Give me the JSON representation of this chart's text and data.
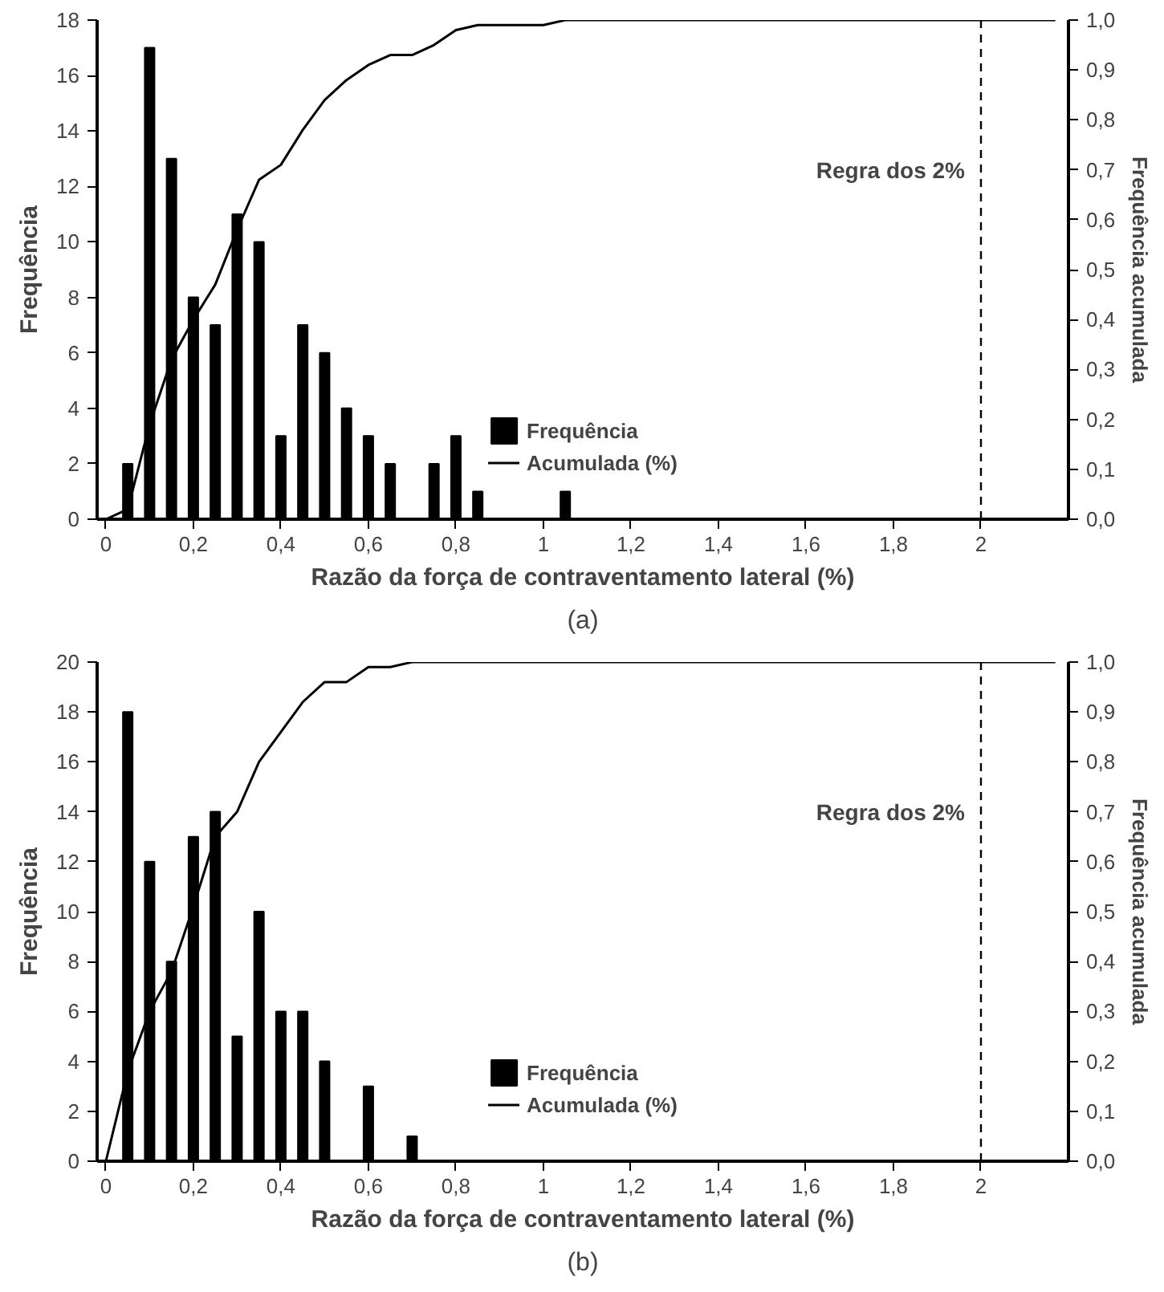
{
  "chart_data": [
    {
      "type": "bar",
      "xlabel": "Razão da força de contraventamento lateral (%)",
      "ylabel": "Frequência",
      "y2label": "Frequência acumulada",
      "annotations": [
        "(a)"
      ],
      "x": [
        0.05,
        0.1,
        0.15,
        0.2,
        0.25,
        0.3,
        0.35,
        0.4,
        0.45,
        0.5,
        0.55,
        0.6,
        0.65,
        0.7,
        0.75,
        0.8,
        0.85,
        0.9,
        0.95,
        1.0,
        1.05
      ],
      "series": [
        {
          "name": "Frequência",
          "color": "#000000",
          "values": [
            2,
            17,
            13,
            8,
            7,
            11,
            10,
            3,
            7,
            6,
            4,
            3,
            2,
            0,
            2,
            3,
            1,
            0,
            0,
            0,
            1
          ]
        },
        {
          "name": "Acumulada (%)",
          "type": "line",
          "axis": "y2",
          "color": "#000000",
          "x": [
            0,
            0.05,
            0.1,
            0.15,
            0.2,
            0.25,
            0.3,
            0.35,
            0.4,
            0.45,
            0.5,
            0.55,
            0.6,
            0.65,
            0.7,
            0.75,
            0.8,
            0.85,
            0.9,
            0.95,
            1.0,
            1.05,
            2.17
          ],
          "values": [
            0,
            0.02,
            0.19,
            0.32,
            0.4,
            0.47,
            0.58,
            0.68,
            0.71,
            0.78,
            0.84,
            0.88,
            0.91,
            0.93,
            0.93,
            0.95,
            0.98,
            0.99,
            0.99,
            0.99,
            0.99,
            1.0,
            1.0
          ]
        }
      ],
      "xlim": [
        -0.02,
        2.2
      ],
      "xticks": [
        0,
        {
          "value": 0.2,
          "label": "0,2"
        },
        {
          "value": 0.4,
          "label": "0,4"
        },
        {
          "value": 0.6,
          "label": "0,6"
        },
        {
          "value": 0.8,
          "label": "0,8"
        },
        1,
        {
          "value": 1.2,
          "label": "1,2"
        },
        {
          "value": 1.4,
          "label": "1,4"
        },
        {
          "value": 1.6,
          "label": "1,6"
        },
        {
          "value": 1.8,
          "label": "1,8"
        },
        2
      ],
      "ylim": [
        0,
        18
      ],
      "yticks": [
        0,
        2,
        4,
        6,
        8,
        10,
        12,
        14,
        16,
        18
      ],
      "y2lim": [
        0,
        1
      ],
      "y2ticks": [
        {
          "value": 0,
          "label": "0,0"
        },
        {
          "value": 0.1,
          "label": "0,1"
        },
        {
          "value": 0.2,
          "label": "0,2"
        },
        {
          "value": 0.3,
          "label": "0,3"
        },
        {
          "value": 0.4,
          "label": "0,4"
        },
        {
          "value": 0.5,
          "label": "0,5"
        },
        {
          "value": 0.6,
          "label": "0,6"
        },
        {
          "value": 0.7,
          "label": "0,7"
        },
        {
          "value": 0.8,
          "label": "0,8"
        },
        {
          "value": 0.9,
          "label": "0,9"
        },
        {
          "value": 1.0,
          "label": "1,0"
        }
      ],
      "ref_lines": [
        {
          "axis": "x",
          "value": 2,
          "label": "Regra dos 2%",
          "line_style": "dashed",
          "color": "#000000"
        }
      ],
      "legend": "bottom",
      "grid": false,
      "marker": "none",
      "line_style": "solid"
    },
    {
      "type": "bar",
      "xlabel": "Razão da força de contraventamento lateral (%)",
      "ylabel": "Frequência",
      "y2label": "Frequência acumulada",
      "annotations": [
        "(b)"
      ],
      "x": [
        0.05,
        0.1,
        0.15,
        0.2,
        0.25,
        0.3,
        0.35,
        0.4,
        0.45,
        0.5,
        0.55,
        0.6,
        0.65,
        0.7
      ],
      "series": [
        {
          "name": "Frequência",
          "color": "#000000",
          "values": [
            18,
            12,
            8,
            13,
            14,
            5,
            10,
            6,
            6,
            4,
            0,
            3,
            0,
            1
          ]
        },
        {
          "name": "Acumulada (%)",
          "type": "line",
          "axis": "y2",
          "color": "#000000",
          "x": [
            0,
            0.05,
            0.1,
            0.15,
            0.2,
            0.25,
            0.3,
            0.35,
            0.4,
            0.45,
            0.5,
            0.55,
            0.6,
            0.65,
            0.7,
            2.17
          ],
          "values": [
            0,
            0.18,
            0.3,
            0.38,
            0.51,
            0.65,
            0.7,
            0.8,
            0.86,
            0.92,
            0.96,
            0.96,
            0.99,
            0.99,
            1.0,
            1.0
          ]
        }
      ],
      "xlim": [
        -0.02,
        2.2
      ],
      "xticks": [
        0,
        {
          "value": 0.2,
          "label": "0,2"
        },
        {
          "value": 0.4,
          "label": "0,4"
        },
        {
          "value": 0.6,
          "label": "0,6"
        },
        {
          "value": 0.8,
          "label": "0,8"
        },
        1,
        {
          "value": 1.2,
          "label": "1,2"
        },
        {
          "value": 1.4,
          "label": "1,4"
        },
        {
          "value": 1.6,
          "label": "1,6"
        },
        {
          "value": 1.8,
          "label": "1,8"
        },
        2
      ],
      "ylim": [
        0,
        20
      ],
      "yticks": [
        0,
        2,
        4,
        6,
        8,
        10,
        12,
        14,
        16,
        18,
        20
      ],
      "y2lim": [
        0,
        1
      ],
      "y2ticks": [
        {
          "value": 0,
          "label": "0,0"
        },
        {
          "value": 0.1,
          "label": "0,1"
        },
        {
          "value": 0.2,
          "label": "0,2"
        },
        {
          "value": 0.3,
          "label": "0,3"
        },
        {
          "value": 0.4,
          "label": "0,4"
        },
        {
          "value": 0.5,
          "label": "0,5"
        },
        {
          "value": 0.6,
          "label": "0,6"
        },
        {
          "value": 0.7,
          "label": "0,7"
        },
        {
          "value": 0.8,
          "label": "0,8"
        },
        {
          "value": 0.9,
          "label": "0,9"
        },
        {
          "value": 1.0,
          "label": "1,0"
        }
      ],
      "ref_lines": [
        {
          "axis": "x",
          "value": 2,
          "label": "Regra dos 2%",
          "line_style": "dashed",
          "color": "#000000"
        }
      ],
      "legend": "bottom",
      "grid": false,
      "marker": "none",
      "line_style": "solid"
    }
  ]
}
